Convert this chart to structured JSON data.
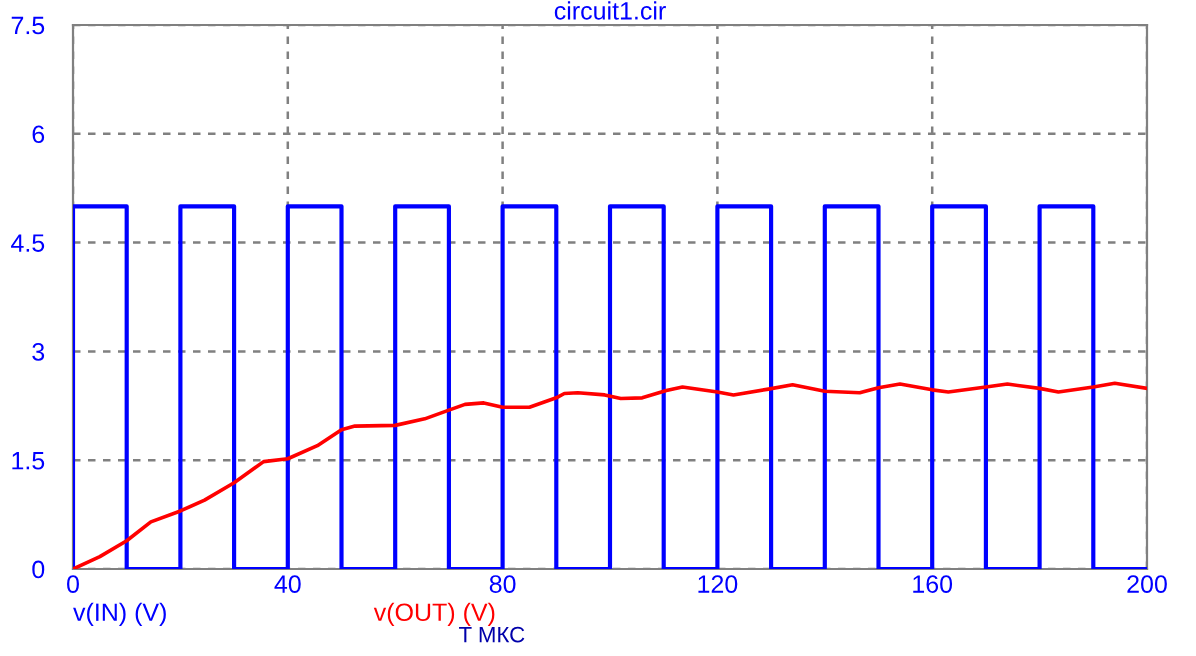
{
  "chart_data": {
    "type": "line",
    "title": "circuit1.cir",
    "xlabel": "T МКС",
    "xlim": [
      0,
      200
    ],
    "xticks": [
      0,
      40,
      80,
      120,
      160,
      200
    ],
    "ylim": [
      0,
      7.5
    ],
    "yticks": [
      0,
      1.5,
      3,
      4.5,
      6,
      7.5
    ],
    "grid": true,
    "legend": "bottom",
    "line_style": "solid",
    "marker": "none",
    "series": [
      {
        "name": "v(IN) (V)",
        "color": "#0000ff",
        "type": "step",
        "x": [
          0,
          0,
          10,
          10,
          20,
          20,
          30,
          30,
          40,
          40,
          50,
          50,
          60,
          60,
          70,
          70,
          80,
          80,
          90,
          90,
          100,
          100,
          110,
          110,
          120,
          120,
          130,
          130,
          140,
          140,
          150,
          150,
          160,
          160,
          170,
          170,
          180,
          180,
          190,
          190,
          200
        ],
        "values": [
          0,
          5,
          5,
          0,
          0,
          5,
          5,
          0,
          0,
          5,
          5,
          0,
          0,
          5,
          5,
          0,
          0,
          5,
          5,
          0,
          0,
          5,
          5,
          0,
          0,
          5,
          5,
          0,
          0,
          5,
          5,
          0,
          0,
          5,
          5,
          0,
          0,
          5,
          5,
          0,
          0
        ]
      },
      {
        "name": "v(OUT) (V)",
        "color": "#ff0000",
        "x": [
          0,
          5,
          10,
          14.5,
          20,
          24.5,
          30,
          35.5,
          40,
          45.5,
          50,
          52.5,
          60,
          65.5,
          70,
          73,
          76.5,
          80,
          85,
          90,
          91.5,
          94,
          99,
          102,
          106,
          110.5,
          113.5,
          120,
          123,
          129.5,
          134,
          140,
          146.5,
          150,
          154,
          160,
          163,
          170,
          174,
          180,
          183.5,
          190,
          194,
          200
        ],
        "values": [
          0,
          0.17,
          0.39,
          0.65,
          0.8,
          0.95,
          1.19,
          1.48,
          1.52,
          1.7,
          1.92,
          1.97,
          1.98,
          2.07,
          2.19,
          2.27,
          2.29,
          2.23,
          2.23,
          2.36,
          2.42,
          2.43,
          2.4,
          2.35,
          2.36,
          2.46,
          2.51,
          2.44,
          2.4,
          2.48,
          2.54,
          2.45,
          2.43,
          2.5,
          2.55,
          2.47,
          2.44,
          2.51,
          2.55,
          2.49,
          2.44,
          2.51,
          2.56,
          2.49
        ]
      }
    ]
  }
}
